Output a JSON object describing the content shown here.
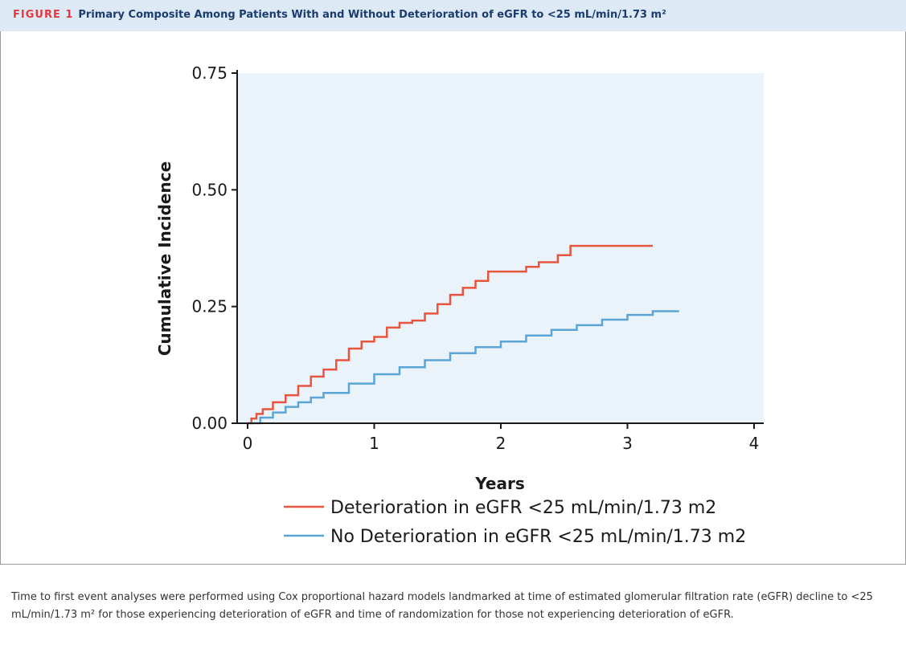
{
  "figure": {
    "label": "FIGURE 1",
    "title": "Primary Composite Among Patients With and Without Deterioration of eGFR to <25 mL/min/1.73 m²",
    "caption": "Time to first event analyses were performed using Cox proportional hazard models landmarked at time of estimated glomerular filtration rate (eGFR) decline to <25 mL/min/1.73 m² for those experiencing deterioration of eGFR and time of randomization for those not experiencing deterioration of eGFR."
  },
  "colors": {
    "series_deterioration": "#e8553e",
    "series_no_deterioration": "#5aa5d6",
    "plot_background": "#eaf2fa"
  },
  "chart_data": {
    "type": "line",
    "xlabel": "Years",
    "ylabel": "Cumulative Incidence",
    "xlim": [
      0,
      4
    ],
    "ylim": [
      0,
      0.75
    ],
    "x_ticks": [
      "0",
      "1",
      "2",
      "3",
      "4"
    ],
    "y_ticks": [
      "0.00",
      "0.25",
      "0.50",
      "0.75"
    ],
    "x_tick_values": [
      0,
      1,
      2,
      3,
      4
    ],
    "y_tick_values": [
      0,
      0.25,
      0.5,
      0.75
    ],
    "grid": false,
    "legend_position": "bottom",
    "series": [
      {
        "name": "Deterioration in eGFR <25 mL/min/1.73 m2",
        "step": true,
        "x": [
          0,
          0.03,
          0.07,
          0.12,
          0.2,
          0.3,
          0.4,
          0.5,
          0.6,
          0.7,
          0.8,
          0.9,
          1.0,
          1.1,
          1.2,
          1.3,
          1.4,
          1.5,
          1.6,
          1.7,
          1.8,
          1.9,
          2.0,
          2.2,
          2.3,
          2.45,
          2.55,
          2.8,
          3.2
        ],
        "y": [
          0,
          0.01,
          0.02,
          0.03,
          0.045,
          0.06,
          0.08,
          0.1,
          0.115,
          0.135,
          0.16,
          0.175,
          0.185,
          0.205,
          0.215,
          0.22,
          0.235,
          0.255,
          0.275,
          0.29,
          0.305,
          0.325,
          0.325,
          0.335,
          0.345,
          0.36,
          0.38,
          0.38,
          0.38
        ]
      },
      {
        "name": "No Deterioration in eGFR <25 mL/min/1.73 m2",
        "step": true,
        "x": [
          0,
          0.1,
          0.2,
          0.3,
          0.4,
          0.5,
          0.6,
          0.8,
          1.0,
          1.2,
          1.4,
          1.6,
          1.8,
          2.0,
          2.2,
          2.4,
          2.6,
          2.8,
          3.0,
          3.2,
          3.4
        ],
        "y": [
          0,
          0.012,
          0.023,
          0.035,
          0.045,
          0.055,
          0.065,
          0.085,
          0.105,
          0.12,
          0.135,
          0.15,
          0.163,
          0.175,
          0.188,
          0.2,
          0.21,
          0.222,
          0.232,
          0.24,
          0.242
        ]
      }
    ]
  }
}
